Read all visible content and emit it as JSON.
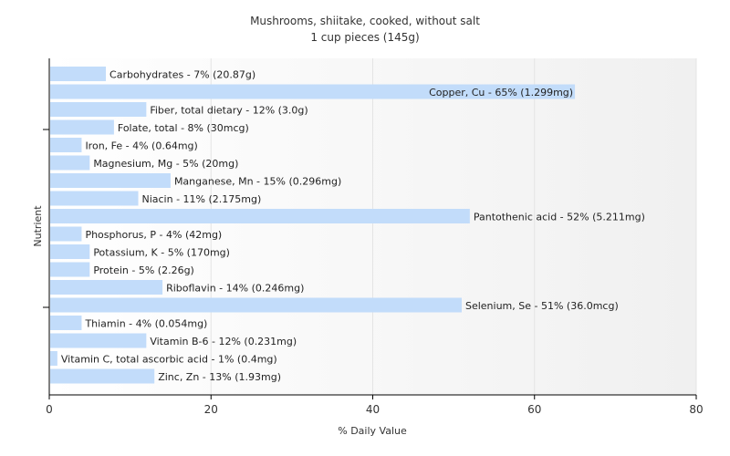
{
  "chart_data": {
    "type": "bar",
    "orientation": "horizontal",
    "title": "Mushrooms, shiitake, cooked, without salt",
    "subtitle": "1 cup pieces (145g)",
    "xlabel": "% Daily Value",
    "ylabel": "Nutrient",
    "xlim": [
      0,
      80
    ],
    "xticks": [
      "0",
      "20",
      "40",
      "60",
      "80"
    ],
    "grid": true,
    "bar_color": "#c2dcfa",
    "categories": [
      "Carbohydrates",
      "Copper, Cu",
      "Fiber, total dietary",
      "Folate, total",
      "Iron, Fe",
      "Magnesium, Mg",
      "Manganese, Mn",
      "Niacin",
      "Pantothenic acid",
      "Phosphorus, P",
      "Potassium, K",
      "Protein",
      "Riboflavin",
      "Selenium, Se",
      "Thiamin",
      "Vitamin B-6",
      "Vitamin C, total ascorbic acid",
      "Zinc, Zn"
    ],
    "values": [
      7,
      65,
      12,
      8,
      4,
      5,
      15,
      11,
      52,
      4,
      5,
      5,
      14,
      51,
      4,
      12,
      1,
      13
    ],
    "labels": [
      "Carbohydrates - 7% (20.87g)",
      "Copper, Cu - 65% (1.299mg)",
      "Fiber, total dietary - 12% (3.0g)",
      "Folate, total - 8% (30mcg)",
      "Iron, Fe - 4% (0.64mg)",
      "Magnesium, Mg - 5% (20mg)",
      "Manganese, Mn - 15% (0.296mg)",
      "Niacin - 11% (2.175mg)",
      "Pantothenic acid - 52% (5.211mg)",
      "Phosphorus, P - 4% (42mg)",
      "Potassium, K - 5% (170mg)",
      "Protein - 5% (2.26g)",
      "Riboflavin - 14% (0.246mg)",
      "Selenium, Se - 51% (36.0mcg)",
      "Thiamin - 4% (0.054mg)",
      "Vitamin B-6 - 12% (0.231mg)",
      "Vitamin C, total ascorbic acid - 1% (0.4mg)",
      "Zinc, Zn - 13% (1.93mg)"
    ]
  }
}
